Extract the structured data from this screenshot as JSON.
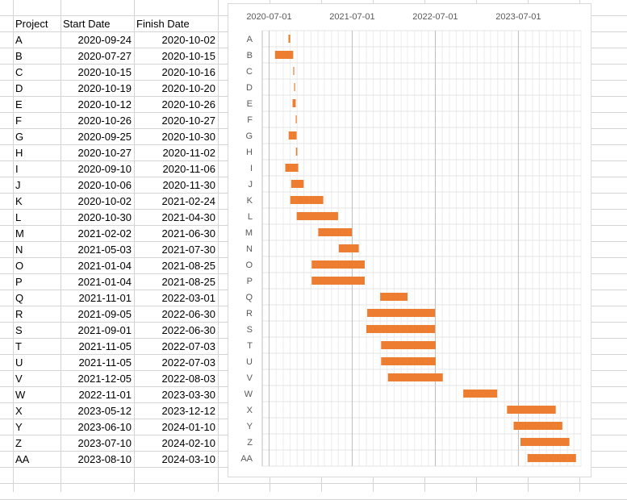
{
  "sheet": {
    "headers": [
      "Project",
      "Start Date",
      "Finish Date"
    ],
    "rows": [
      [
        "A",
        "2020-09-24",
        "2020-10-02"
      ],
      [
        "B",
        "2020-07-27",
        "2020-10-15"
      ],
      [
        "C",
        "2020-10-15",
        "2020-10-16"
      ],
      [
        "D",
        "2020-10-19",
        "2020-10-20"
      ],
      [
        "E",
        "2020-10-12",
        "2020-10-26"
      ],
      [
        "F",
        "2020-10-26",
        "2020-10-27"
      ],
      [
        "G",
        "2020-09-25",
        "2020-10-30"
      ],
      [
        "H",
        "2020-10-27",
        "2020-11-02"
      ],
      [
        "I",
        "2020-09-10",
        "2020-11-06"
      ],
      [
        "J",
        "2020-10-06",
        "2020-11-30"
      ],
      [
        "K",
        "2020-10-02",
        "2021-02-24"
      ],
      [
        "L",
        "2020-10-30",
        "2021-04-30"
      ],
      [
        "M",
        "2021-02-02",
        "2021-06-30"
      ],
      [
        "N",
        "2021-05-03",
        "2021-07-30"
      ],
      [
        "O",
        "2021-01-04",
        "2021-08-25"
      ],
      [
        "P",
        "2021-01-04",
        "2021-08-25"
      ],
      [
        "Q",
        "2021-11-01",
        "2022-03-01"
      ],
      [
        "R",
        "2021-09-05",
        "2022-06-30"
      ],
      [
        "S",
        "2021-09-01",
        "2022-06-30"
      ],
      [
        "T",
        "2021-11-05",
        "2022-07-03"
      ],
      [
        "U",
        "2021-11-05",
        "2022-07-03"
      ],
      [
        "V",
        "2021-12-05",
        "2022-08-03"
      ],
      [
        "W",
        "2022-11-01",
        "2023-03-30"
      ],
      [
        "X",
        "2023-05-12",
        "2023-12-12"
      ],
      [
        "Y",
        "2023-06-10",
        "2024-01-10"
      ],
      [
        "Z",
        "2023-07-10",
        "2024-02-10"
      ],
      [
        "AA",
        "2023-08-10",
        "2024-03-10"
      ]
    ]
  },
  "chart_data": {
    "type": "bar",
    "orientation": "horizontal",
    "style": "gantt",
    "title": "",
    "bar_color": "#ED7D31",
    "x_axis_position": "top",
    "x_ticks": [
      "2020-07-01",
      "2021-07-01",
      "2022-07-01",
      "2023-07-01"
    ],
    "xlim": [
      "2020-06-01",
      "2024-04-01"
    ],
    "gridlines": true,
    "categories": [
      "A",
      "B",
      "C",
      "D",
      "E",
      "F",
      "G",
      "H",
      "I",
      "J",
      "K",
      "L",
      "M",
      "N",
      "O",
      "P",
      "Q",
      "R",
      "S",
      "T",
      "U",
      "V",
      "W",
      "X",
      "Y",
      "Z",
      "AA"
    ],
    "series": [
      {
        "start": [
          "2020-09-24",
          "2020-07-27",
          "2020-10-15",
          "2020-10-19",
          "2020-10-12",
          "2020-10-26",
          "2020-09-25",
          "2020-10-27",
          "2020-09-10",
          "2020-10-06",
          "2020-10-02",
          "2020-10-30",
          "2021-02-02",
          "2021-05-03",
          "2021-01-04",
          "2021-01-04",
          "2021-11-01",
          "2021-09-05",
          "2021-09-01",
          "2021-11-05",
          "2021-11-05",
          "2021-12-05",
          "2022-11-01",
          "2023-05-12",
          "2023-06-10",
          "2023-07-10",
          "2023-08-10"
        ],
        "finish": [
          "2020-10-02",
          "2020-10-15",
          "2020-10-16",
          "2020-10-20",
          "2020-10-26",
          "2020-10-27",
          "2020-10-30",
          "2020-11-02",
          "2020-11-06",
          "2020-11-30",
          "2021-02-24",
          "2021-04-30",
          "2021-06-30",
          "2021-07-30",
          "2021-08-25",
          "2021-08-25",
          "2022-03-01",
          "2022-06-30",
          "2022-06-30",
          "2022-07-03",
          "2022-07-03",
          "2022-08-03",
          "2023-03-30",
          "2023-12-12",
          "2024-01-10",
          "2024-02-10",
          "2024-03-10"
        ]
      }
    ]
  }
}
